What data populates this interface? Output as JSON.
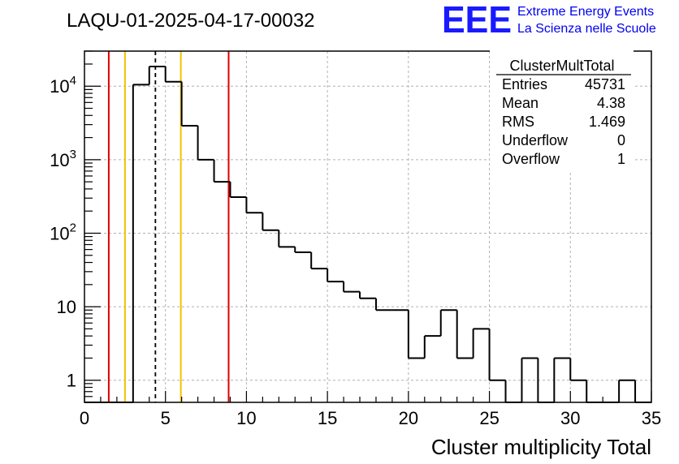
{
  "plot_title": "LAQU-01-2025-04-17-00032",
  "logo": {
    "mark": "EEE",
    "line1": "Extreme Energy Events",
    "line2": "La Scienza nelle Scuole",
    "color": "#1a1aff"
  },
  "stats": {
    "name": "ClusterMultTotal",
    "rows": [
      {
        "label": "Entries",
        "value": "45731"
      },
      {
        "label": "Mean",
        "value": "4.38"
      },
      {
        "label": "RMS",
        "value": "1.469"
      },
      {
        "label": "Underflow",
        "value": "0"
      },
      {
        "label": "Overflow",
        "value": "1"
      }
    ]
  },
  "chart_data": {
    "type": "histogram",
    "title": "LAQU-01-2025-04-17-00032",
    "xlabel": "Cluster multiplicity Total",
    "ylabel": "",
    "xlim": [
      0,
      35
    ],
    "ylim": [
      0.5,
      30000
    ],
    "yscale": "log",
    "grid": true,
    "bin_edges": [
      0,
      1,
      2,
      3,
      4,
      5,
      6,
      7,
      8,
      9,
      10,
      11,
      12,
      13,
      14,
      15,
      16,
      17,
      18,
      19,
      20,
      21,
      22,
      23,
      24,
      25,
      26,
      27,
      28,
      29,
      30,
      31,
      32,
      33,
      34,
      35
    ],
    "counts": [
      0,
      0,
      0,
      10500,
      18500,
      11500,
      2900,
      1000,
      500,
      310,
      190,
      110,
      65,
      55,
      33,
      22,
      16,
      13,
      9,
      9,
      2,
      4,
      9,
      2,
      5,
      1,
      0,
      2,
      0,
      2,
      1,
      0,
      0,
      1,
      0
    ],
    "x_ticks": [
      0,
      5,
      10,
      15,
      20,
      25,
      30,
      35
    ],
    "x_tick_labels": [
      "0",
      "5",
      "10",
      "15",
      "20",
      "25",
      "30",
      "35"
    ],
    "y_ticks": [
      1,
      10,
      100,
      1000,
      10000
    ],
    "y_tick_labels": [
      {
        "base": "1",
        "exp": ""
      },
      {
        "base": "10",
        "exp": ""
      },
      {
        "base": "10",
        "exp": "2"
      },
      {
        "base": "10",
        "exp": "3"
      },
      {
        "base": "10",
        "exp": "4"
      }
    ],
    "vertical_markers": [
      {
        "x": 1.5,
        "color": "#e00000",
        "style": "solid"
      },
      {
        "x": 2.5,
        "color": "#f2c200",
        "style": "solid"
      },
      {
        "x": 4.38,
        "color": "#000000",
        "style": "dashed"
      },
      {
        "x": 5.95,
        "color": "#f2c200",
        "style": "solid"
      },
      {
        "x": 8.9,
        "color": "#e00000",
        "style": "solid"
      }
    ],
    "legend_position": "top-right",
    "line_color": "#000000"
  }
}
